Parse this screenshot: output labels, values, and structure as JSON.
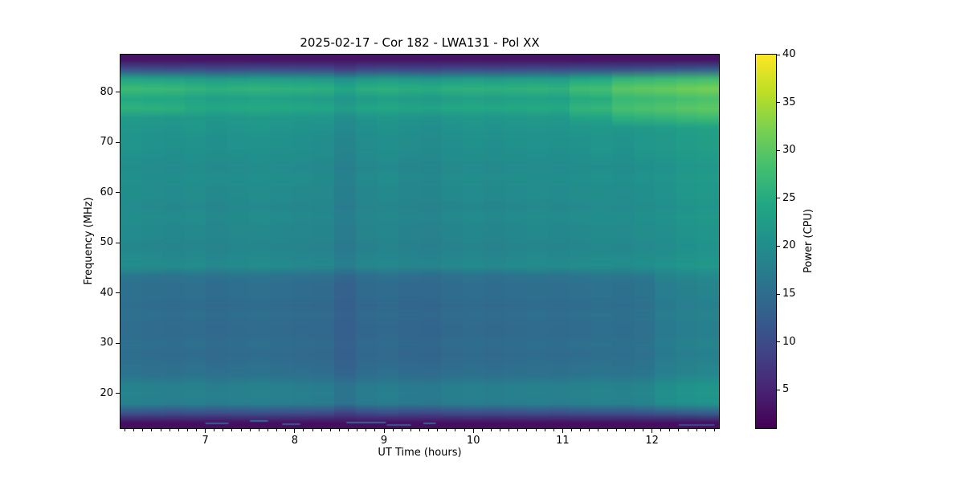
{
  "figure": {
    "background": "#ffffff"
  },
  "chart_data": {
    "type": "heatmap",
    "title": "2025-02-17 - Cor 182 - LWA131 - Pol XX",
    "xlabel": "UT Time (hours)",
    "ylabel": "Frequency (MHz)",
    "colorbar_label": "Power (CPU)",
    "colormap": "viridis",
    "x_range": [
      6.05,
      12.75
    ],
    "y_range": [
      13.1,
      87.5
    ],
    "x_ticks": [
      7,
      8,
      9,
      10,
      11,
      12
    ],
    "x_minor_step": 0.1,
    "y_ticks": [
      20,
      30,
      40,
      50,
      60,
      70,
      80
    ],
    "value_range": [
      1,
      40
    ],
    "colorbar_ticks": [
      5,
      10,
      15,
      20,
      25,
      30,
      35,
      40
    ],
    "legend_position": "right-colorbar",
    "grid_lines": false,
    "style": {
      "text_color": "#000000",
      "spine_color": "#000000"
    },
    "grid": {
      "comment": "Power (CPU) vs frequency(rows, 87.5->13.1 MHz top to bottom) and UT time (cols, 6.05->12.75 h). value[r][c]=freq_profile[r] + (in-band ? time_offsets[c] : 0) + region deltas.",
      "freq_profile": [
        3,
        10,
        22.5,
        26,
        23,
        24.5,
        21.5,
        21,
        20.5,
        20.5,
        20,
        19.5,
        20,
        19.5,
        19.5,
        19,
        19.5,
        19,
        19,
        18.5,
        19,
        19.5,
        16,
        15,
        15,
        14.5,
        15,
        14.5,
        14.5,
        15,
        14.5,
        15,
        15.5,
        17.5,
        18,
        17.5,
        10,
        2.5
      ],
      "time_offsets": [
        0.5,
        0.2,
        0,
        0.3,
        -0.2,
        0.1,
        0.3,
        0,
        -0.2,
        -0.4,
        -1.8,
        -0.6,
        -0.2,
        -0.7,
        -0.9,
        -0.3,
        0,
        -0.3,
        0,
        0.2,
        0,
        0.3,
        0.6,
        0.4,
        0.8,
        1.2,
        1.8,
        2.2
      ],
      "in_band_threshold": 8,
      "regions": [
        {
          "rows": [
            2,
            6
          ],
          "cols": [
            23,
            27
          ],
          "delta": 3.5
        },
        {
          "rows": [
            2,
            6
          ],
          "cols": [
            21,
            22
          ],
          "delta": 1.5
        },
        {
          "rows": [
            2,
            5
          ],
          "cols": [
            0,
            2
          ],
          "delta": 1.0
        },
        {
          "rows": [
            22,
            35
          ],
          "cols": [
            25,
            27
          ],
          "delta": 1.2
        }
      ],
      "streaks": [
        {
          "t": [
            7.0,
            7.26
          ],
          "f": 14.3,
          "v": 13
        },
        {
          "t": [
            7.5,
            7.7
          ],
          "f": 14.7,
          "v": 15
        },
        {
          "t": [
            7.86,
            8.06
          ],
          "f": 14.1,
          "v": 12
        },
        {
          "t": [
            8.58,
            9.02
          ],
          "f": 14.4,
          "v": 14
        },
        {
          "t": [
            9.03,
            9.3
          ],
          "f": 13.9,
          "v": 12
        },
        {
          "t": [
            9.44,
            9.58
          ],
          "f": 14.3,
          "v": 14
        },
        {
          "t": [
            12.3,
            12.7
          ],
          "f": 13.9,
          "v": 10
        }
      ]
    }
  }
}
